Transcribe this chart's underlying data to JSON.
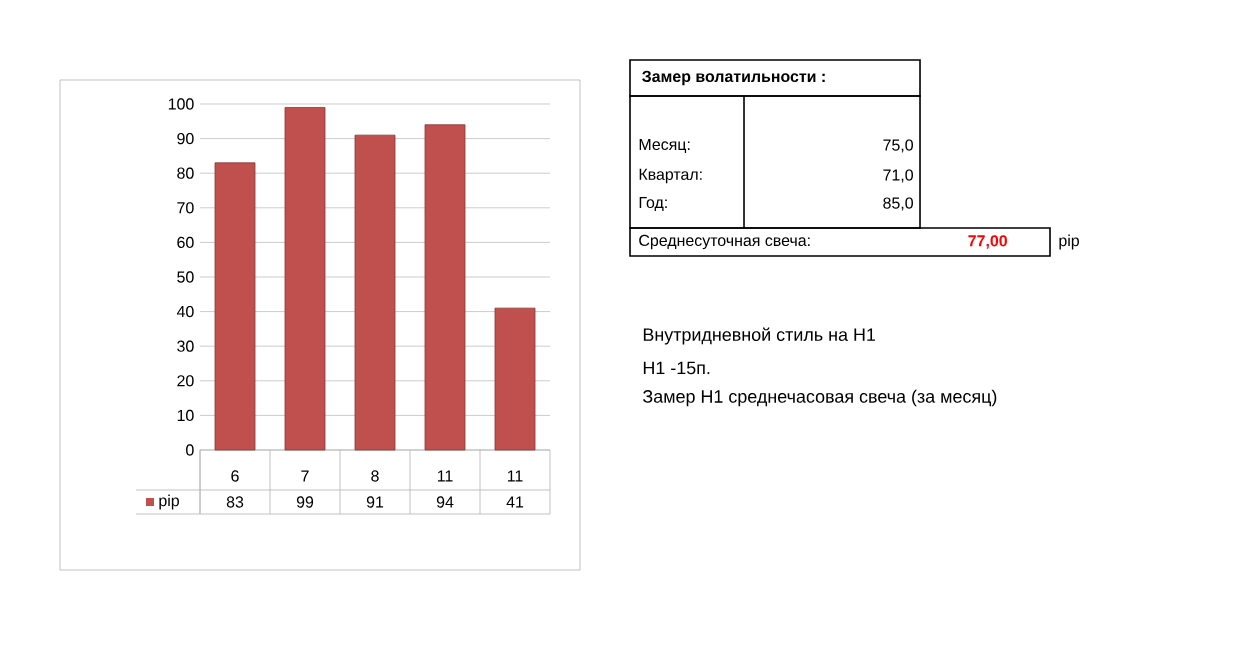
{
  "chart_data": [
    {
      "type": "bar",
      "categories": [
        "6",
        "7",
        "8",
        "11",
        "11"
      ],
      "series": [
        {
          "name": "pip",
          "color": "#c0504d",
          "values": [
            83,
            99,
            91,
            94,
            41
          ]
        }
      ],
      "ylim": [
        0,
        100
      ],
      "yticks": [
        0,
        10,
        20,
        30,
        40,
        50,
        60,
        70,
        80,
        90,
        100
      ],
      "grid": "y",
      "data_labels": true,
      "legend": "bottom left"
    },
    {
      "type": "other",
      "title": "Замер  волатильности  :",
      "annotations": [
        "Месяц:",
        "75,0",
        "Квартал:",
        "71,0",
        "Год:",
        "85,0",
        "Среднесуточная свеча:",
        "77,00",
        "pip",
        "Внутридневной стиль на H1",
        "H1 -15п.",
        "Замер H1 среднечасовая свеча (за месяц)"
      ]
    }
  ]
}
